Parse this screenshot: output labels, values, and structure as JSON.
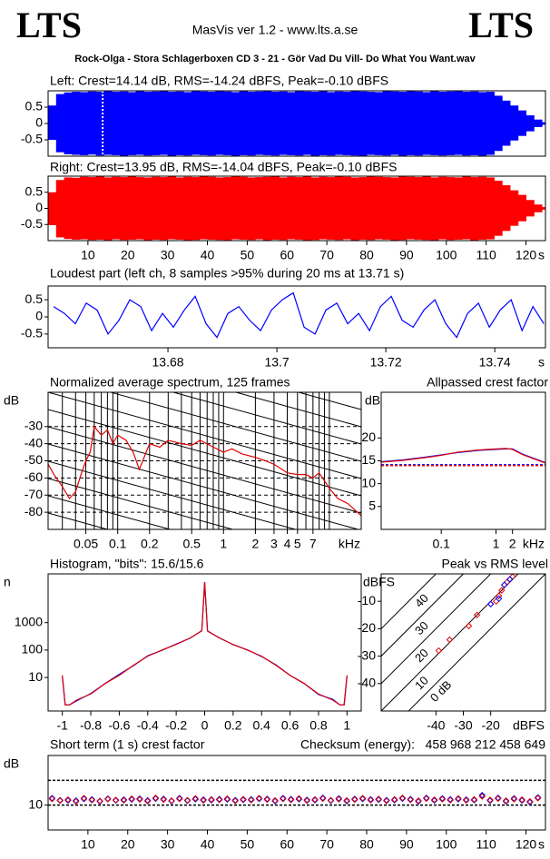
{
  "header": {
    "logo_left": "LTS",
    "title": "MasVis ver 1.2 - www.lts.a.se",
    "logo_right": "LTS",
    "file": "Rock-Olga - Stora Schlagerboxen CD 3 - 21 - Gör Vad Du Vill- Do What You Want.wav"
  },
  "chart_data": [
    {
      "type": "envelope",
      "title": "Left: Crest=14.14 dB, RMS=-14.24 dBFS, Peak=-0.10 dBFS",
      "color": "#0000ff",
      "x": [
        0,
        2,
        4,
        6,
        8,
        10,
        12,
        14,
        16,
        18,
        20,
        22,
        24,
        26,
        28,
        30,
        32,
        34,
        36,
        38,
        40,
        42,
        44,
        46,
        48,
        50,
        52,
        54,
        56,
        58,
        60,
        62,
        64,
        66,
        68,
        70,
        72,
        74,
        76,
        78,
        80,
        82,
        84,
        86,
        88,
        90,
        92,
        94,
        96,
        98,
        100,
        102,
        104,
        106,
        108,
        110,
        112,
        114,
        116,
        118,
        120,
        122,
        124
      ],
      "upper": [
        0.55,
        0.9,
        0.95,
        0.97,
        0.96,
        0.98,
        0.97,
        0.99,
        0.97,
        0.98,
        0.96,
        0.99,
        0.97,
        0.98,
        0.99,
        0.97,
        0.98,
        0.96,
        0.99,
        0.98,
        0.97,
        0.99,
        0.98,
        0.96,
        0.99,
        0.97,
        0.98,
        0.99,
        0.97,
        0.98,
        0.96,
        0.99,
        0.98,
        0.97,
        0.99,
        0.96,
        0.98,
        0.97,
        0.99,
        0.98,
        0.97,
        0.96,
        0.99,
        0.98,
        0.97,
        0.99,
        0.98,
        0.96,
        0.99,
        0.97,
        0.98,
        0.99,
        0.97,
        0.98,
        0.96,
        0.97,
        0.85,
        0.7,
        0.55,
        0.4,
        0.25,
        0.12,
        0.04
      ],
      "lower": [
        -0.5,
        -0.88,
        -0.94,
        -0.96,
        -0.97,
        -0.95,
        -0.98,
        -0.96,
        -0.97,
        -0.99,
        -0.97,
        -0.96,
        -0.98,
        -0.97,
        -0.96,
        -0.99,
        -0.97,
        -0.98,
        -0.96,
        -0.97,
        -0.98,
        -0.96,
        -0.97,
        -0.99,
        -0.97,
        -0.98,
        -0.96,
        -0.97,
        -0.98,
        -0.96,
        -0.97,
        -0.98,
        -0.96,
        -0.99,
        -0.97,
        -0.98,
        -0.96,
        -0.97,
        -0.98,
        -0.99,
        -0.96,
        -0.97,
        -0.98,
        -0.96,
        -0.99,
        -0.97,
        -0.98,
        -0.96,
        -0.97,
        -0.98,
        -0.97,
        -0.96,
        -0.98,
        -0.97,
        -0.99,
        -0.96,
        -0.84,
        -0.68,
        -0.52,
        -0.38,
        -0.24,
        -0.11,
        -0.04
      ],
      "marker": 13.71,
      "xlim": [
        0,
        124.9
      ],
      "ylim": [
        -1,
        1
      ],
      "yticks": [
        0.5,
        0,
        -0.5
      ]
    },
    {
      "type": "envelope",
      "title": "Right: Crest=13.95 dB, RMS=-14.04 dBFS, Peak=-0.10 dBFS",
      "color": "#ff0000",
      "x": [
        0,
        2,
        4,
        6,
        8,
        10,
        12,
        14,
        16,
        18,
        20,
        22,
        24,
        26,
        28,
        30,
        32,
        34,
        36,
        38,
        40,
        42,
        44,
        46,
        48,
        50,
        52,
        54,
        56,
        58,
        60,
        62,
        64,
        66,
        68,
        70,
        72,
        74,
        76,
        78,
        80,
        82,
        84,
        86,
        88,
        90,
        92,
        94,
        96,
        98,
        100,
        102,
        104,
        106,
        108,
        110,
        112,
        114,
        116,
        118,
        120,
        122,
        124
      ],
      "upper": [
        0.5,
        0.88,
        0.96,
        0.95,
        0.98,
        0.97,
        0.99,
        0.96,
        0.98,
        0.97,
        0.99,
        0.97,
        0.96,
        0.98,
        0.97,
        0.99,
        0.96,
        0.98,
        0.97,
        0.99,
        0.98,
        0.96,
        0.97,
        0.99,
        0.98,
        0.96,
        0.97,
        0.98,
        0.99,
        0.96,
        0.98,
        0.97,
        0.99,
        0.96,
        0.98,
        0.97,
        0.99,
        0.98,
        0.96,
        0.97,
        0.99,
        0.98,
        0.97,
        0.96,
        0.99,
        0.98,
        0.97,
        0.99,
        0.96,
        0.98,
        0.97,
        0.96,
        0.99,
        0.97,
        0.98,
        0.96,
        0.86,
        0.72,
        0.56,
        0.42,
        0.26,
        0.12,
        0.04
      ],
      "lower": [
        -0.52,
        -0.9,
        -0.95,
        -0.97,
        -0.96,
        -0.98,
        -0.97,
        -0.99,
        -0.96,
        -0.98,
        -0.97,
        -0.96,
        -0.99,
        -0.97,
        -0.98,
        -0.96,
        -0.97,
        -0.99,
        -0.98,
        -0.96,
        -0.97,
        -0.98,
        -0.99,
        -0.96,
        -0.97,
        -0.98,
        -0.96,
        -0.99,
        -0.97,
        -0.98,
        -0.96,
        -0.97,
        -0.99,
        -0.98,
        -0.96,
        -0.97,
        -0.98,
        -0.96,
        -0.99,
        -0.97,
        -0.98,
        -0.96,
        -0.97,
        -0.99,
        -0.98,
        -0.96,
        -0.97,
        -0.98,
        -0.99,
        -0.96,
        -0.98,
        -0.97,
        -0.96,
        -0.99,
        -0.97,
        -0.96,
        -0.85,
        -0.7,
        -0.54,
        -0.4,
        -0.25,
        -0.12,
        -0.04
      ],
      "xlim": [
        0,
        124.9
      ],
      "ylim": [
        -1,
        1
      ],
      "yticks": [
        0.5,
        0,
        -0.5
      ],
      "xticks": [
        10,
        20,
        30,
        40,
        50,
        60,
        70,
        80,
        90,
        100,
        110,
        120
      ],
      "xunit": "s"
    },
    {
      "type": "line",
      "title": "Loudest part (left  ch, 8 samples >95% during 20 ms at 13.71 s)",
      "color": "#0000ff",
      "x": [
        13.659,
        13.661,
        13.663,
        13.665,
        13.667,
        13.669,
        13.671,
        13.673,
        13.675,
        13.677,
        13.679,
        13.681,
        13.683,
        13.685,
        13.687,
        13.689,
        13.691,
        13.693,
        13.695,
        13.697,
        13.699,
        13.701,
        13.703,
        13.705,
        13.707,
        13.709,
        13.711,
        13.713,
        13.715,
        13.717,
        13.719,
        13.721,
        13.723,
        13.725,
        13.727,
        13.729,
        13.731,
        13.733,
        13.735,
        13.737,
        13.739,
        13.741,
        13.743,
        13.745,
        13.747,
        13.749
      ],
      "values": [
        0.3,
        0.1,
        -0.2,
        0.4,
        0.2,
        -0.5,
        -0.1,
        0.5,
        0.3,
        -0.4,
        0.1,
        -0.3,
        0.2,
        0.6,
        -0.2,
        -0.6,
        0.1,
        0.3,
        -0.1,
        -0.4,
        0.2,
        0.5,
        0.7,
        -0.3,
        -0.5,
        0.2,
        0.4,
        -0.2,
        0.1,
        -0.4,
        0.3,
        0.6,
        -0.1,
        -0.3,
        0.2,
        0.5,
        -0.2,
        -0.6,
        0.1,
        0.4,
        -0.3,
        0.2,
        0.5,
        -0.4,
        0.3,
        -0.2
      ],
      "xlim": [
        13.658,
        13.7493
      ],
      "ylim": [
        -0.9,
        0.9
      ],
      "yticks": [
        0.5,
        0,
        -0.5
      ],
      "xticks": [
        13.68,
        13.7,
        13.72,
        13.74
      ],
      "xunit": "s"
    },
    {
      "type": "line",
      "title": "Normalized average spectrum, 125 frames",
      "ylabel": "dB",
      "xscale": "log",
      "grid": true,
      "x": [
        0.022,
        0.025,
        0.03,
        0.035,
        0.04,
        0.045,
        0.05,
        0.055,
        0.06,
        0.07,
        0.08,
        0.09,
        0.1,
        0.12,
        0.14,
        0.16,
        0.2,
        0.25,
        0.3,
        0.4,
        0.5,
        0.6,
        0.8,
        1,
        1.2,
        1.5,
        2,
        2.5,
        3,
        4,
        5,
        6,
        7,
        8,
        10,
        12,
        15,
        20
      ],
      "series": [
        {
          "color": "#e00000",
          "values": [
            -52,
            -58,
            -65,
            -72,
            -68,
            -58,
            -50,
            -45,
            -30,
            -35,
            -32,
            -40,
            -35,
            -38,
            -45,
            -55,
            -40,
            -42,
            -38,
            -40,
            -41,
            -38,
            -42,
            -45,
            -43,
            -46,
            -48,
            -50,
            -52,
            -57,
            -58,
            -58,
            -60,
            -57,
            -66,
            -72,
            -75,
            -82
          ]
        }
      ],
      "xlim": [
        0.022,
        20
      ],
      "ylim": [
        -90,
        -10
      ],
      "yticks": [
        -30,
        -40,
        -50,
        -60,
        -70,
        -80
      ],
      "xticks": [
        0.05,
        0.1,
        0.2,
        0.5,
        1,
        2,
        3,
        4,
        5,
        7
      ],
      "xunit": "kHz"
    },
    {
      "type": "line",
      "title": "Allpassed crest factor",
      "ylabel": "dB",
      "xscale": "log",
      "x": [
        0.008,
        0.02,
        0.05,
        0.1,
        0.2,
        0.5,
        1,
        1.5,
        2,
        3,
        5,
        8
      ],
      "series": [
        {
          "color": "#0000ff",
          "values": [
            14.8,
            15.2,
            15.8,
            16.3,
            16.8,
            17.3,
            17.5,
            17.6,
            17.6,
            16.5,
            15.5,
            14.6
          ]
        },
        {
          "color": "#e00000",
          "values": [
            14.7,
            15.1,
            15.7,
            16.2,
            16.9,
            17.4,
            17.6,
            17.7,
            17.5,
            16.4,
            15.4,
            14.5
          ]
        }
      ],
      "ref_lines": [
        {
          "value": 14.14,
          "color": "#0000ff"
        },
        {
          "value": 13.95,
          "color": "#e00000"
        }
      ],
      "xlim": [
        0.008,
        8
      ],
      "ylim": [
        0,
        30
      ],
      "yticks": [
        5,
        10,
        15,
        20
      ],
      "xticks": [
        0.1,
        1,
        2
      ],
      "xunit": "kHz"
    },
    {
      "type": "line",
      "title": "Histogram, \"bits\": 15.6/15.6",
      "ylabel": "n",
      "yscale": "log",
      "x": [
        -1,
        -0.98,
        -0.95,
        -0.9,
        -0.8,
        -0.7,
        -0.6,
        -0.5,
        -0.4,
        -0.3,
        -0.2,
        -0.1,
        -0.02,
        0,
        0.02,
        0.1,
        0.2,
        0.3,
        0.4,
        0.5,
        0.6,
        0.7,
        0.8,
        0.9,
        0.95,
        0.98,
        1
      ],
      "series": [
        {
          "color": "#0000ff",
          "values": [
            11,
            1,
            1,
            1.4,
            2.6,
            6,
            13,
            27,
            62,
            98,
            165,
            275,
            510,
            30000,
            490,
            285,
            158,
            102,
            58,
            29,
            12,
            6,
            2.4,
            1.6,
            1,
            1,
            11
          ]
        },
        {
          "color": "#e00000",
          "values": [
            12,
            1,
            1,
            1.5,
            2.5,
            6,
            12,
            28,
            60,
            100,
            160,
            280,
            500,
            30000,
            500,
            280,
            160,
            100,
            60,
            28,
            12,
            6,
            2.5,
            1.5,
            1,
            1,
            12
          ]
        }
      ],
      "xlim": [
        -1.1,
        1.1
      ],
      "ylim": [
        0.6,
        60000
      ],
      "yticks": [
        10,
        100,
        1000
      ],
      "xticks": [
        -1,
        -0.8,
        -0.6,
        -0.4,
        -0.2,
        0,
        0.2,
        0.4,
        0.6,
        0.8,
        1
      ]
    },
    {
      "type": "scatter",
      "title": "Peak vs RMS level",
      "ylabel": "dBFS",
      "series": [
        {
          "color": "#e00000",
          "x": [
            -39,
            -35,
            -28,
            -25,
            -20,
            -18,
            -17,
            -16,
            -15,
            -14,
            -13,
            -12
          ],
          "values": [
            -28,
            -24,
            -19,
            -15,
            -11,
            -10,
            -8,
            -6,
            -4,
            -3,
            -2,
            -1
          ]
        },
        {
          "color": "#0000ff",
          "x": [
            -20,
            -17,
            -15,
            -13
          ],
          "values": [
            -11,
            -9,
            -4,
            -2
          ]
        }
      ],
      "crest_lines": [
        {
          "value": 40,
          "label": "40"
        },
        {
          "value": 30,
          "label": "30"
        },
        {
          "value": 20,
          "label": "20"
        },
        {
          "value": 10,
          "label": "10"
        },
        {
          "value": 0,
          "label": "0 dB"
        }
      ],
      "xlim": [
        -60,
        0
      ],
      "ylim": [
        -50,
        0
      ],
      "yticks": [
        -10,
        -20,
        -30,
        -40
      ],
      "xticks": [
        -40,
        -30,
        -20
      ],
      "xunit": "dBFS"
    },
    {
      "type": "scatter",
      "title": "Short term (1 s) crest factor",
      "annotation": "Checksum (energy):   458 968 212 458 649",
      "ylabel": "dB",
      "series": [
        {
          "color": "#0000ff",
          "x": [
            1,
            3,
            5,
            7,
            9,
            11,
            13,
            15,
            17,
            19,
            21,
            23,
            25,
            27,
            29,
            31,
            33,
            35,
            37,
            39,
            41,
            43,
            45,
            47,
            49,
            51,
            53,
            55,
            57,
            59,
            61,
            63,
            65,
            67,
            69,
            71,
            73,
            75,
            77,
            79,
            81,
            83,
            85,
            87,
            89,
            91,
            93,
            95,
            97,
            99,
            101,
            103,
            105,
            107,
            109,
            111,
            113,
            115,
            117,
            119,
            121,
            123
          ],
          "values": [
            12.8,
            12.0,
            11.9,
            11.8,
            12.5,
            12.3,
            11.5,
            12.6,
            11.9,
            12.2,
            12.3,
            12.6,
            11.9,
            12.6,
            12.5,
            11.6,
            12.8,
            11.8,
            12.4,
            12.2,
            12.0,
            12.4,
            12.3,
            12.0,
            12.1,
            12.3,
            12.5,
            12.5,
            11.6,
            12.8,
            12.4,
            12.4,
            12.1,
            12.0,
            12.9,
            11.8,
            12.7,
            11.6,
            12.5,
            12.5,
            12.3,
            12.2,
            12.0,
            12.0,
            12.6,
            12.4,
            11.5,
            12.9,
            11.9,
            12.7,
            12.3,
            12.4,
            12.2,
            12.0,
            14.0,
            11.8,
            12.9,
            11.5,
            12.7,
            11.9,
            11.2,
            13.1
          ]
        },
        {
          "color": "#e00000",
          "x": [
            1,
            3,
            5,
            7,
            9,
            11,
            13,
            15,
            17,
            19,
            21,
            23,
            25,
            27,
            29,
            31,
            33,
            35,
            37,
            39,
            41,
            43,
            45,
            47,
            49,
            51,
            53,
            55,
            57,
            59,
            61,
            63,
            65,
            67,
            69,
            71,
            73,
            75,
            77,
            79,
            81,
            83,
            85,
            87,
            89,
            91,
            93,
            95,
            97,
            99,
            101,
            103,
            105,
            107,
            109,
            111,
            113,
            115,
            117,
            119,
            121,
            123
          ],
          "values": [
            12.5,
            11.8,
            12.2,
            11.5,
            12.8,
            12.0,
            11.7,
            12.4,
            12.1,
            11.9,
            12.6,
            12.3,
            11.6,
            12.9,
            12.2,
            11.8,
            12.5,
            12.0,
            12.7,
            11.9,
            12.3,
            12.1,
            12.6,
            11.7,
            12.4,
            12.0,
            12.8,
            12.2,
            11.9,
            12.5,
            12.1,
            12.7,
            11.8,
            12.3,
            12.6,
            12.0,
            12.4,
            11.9,
            12.2,
            12.8,
            12.0,
            12.5,
            11.7,
            12.3,
            12.9,
            12.1,
            11.8,
            12.6,
            12.2,
            12.4,
            12.0,
            12.7,
            11.9,
            12.3,
            13.5,
            12.1,
            12.6,
            11.8,
            12.4,
            12.2,
            11.5,
            12.8
          ]
        }
      ],
      "ref_lines": [
        {
          "value": 20,
          "color": "#000000"
        },
        {
          "value": 10,
          "color": "#000000"
        }
      ],
      "xlim": [
        0,
        124.9
      ],
      "ylim": [
        0,
        30
      ],
      "yticks": [
        10
      ],
      "xticks": [
        10,
        20,
        30,
        40,
        50,
        60,
        70,
        80,
        90,
        100,
        110,
        120
      ],
      "xunit": "s"
    }
  ]
}
